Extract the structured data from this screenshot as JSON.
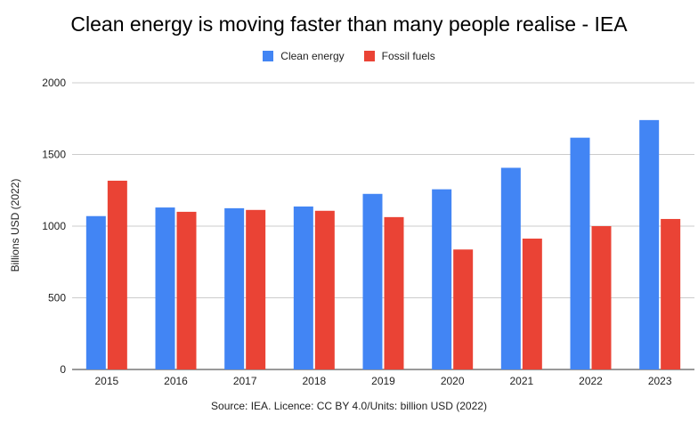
{
  "chart_data": {
    "type": "bar",
    "title": "Clean energy is moving faster than many people realise - IEA",
    "ylabel": "Billions USD (2022)",
    "xlabel": "",
    "source": "Source: IEA. Licence: CC BY 4.0/Units: billion USD (2022)",
    "categories": [
      "2015",
      "2016",
      "2017",
      "2018",
      "2019",
      "2020",
      "2021",
      "2022",
      "2023"
    ],
    "series": [
      {
        "name": "Clean energy",
        "color": "#4285f4",
        "values": [
          1070,
          1130,
          1125,
          1137,
          1225,
          1257,
          1407,
          1617,
          1740
        ]
      },
      {
        "name": "Fossil fuels",
        "color": "#ea4335",
        "values": [
          1317,
          1100,
          1113,
          1107,
          1063,
          837,
          913,
          1000,
          1050
        ]
      }
    ],
    "ylim": [
      0,
      2000
    ],
    "yticks": [
      "0",
      "500",
      "1000",
      "1500",
      "2000"
    ],
    "grid": true,
    "legend_position": "top-center"
  }
}
